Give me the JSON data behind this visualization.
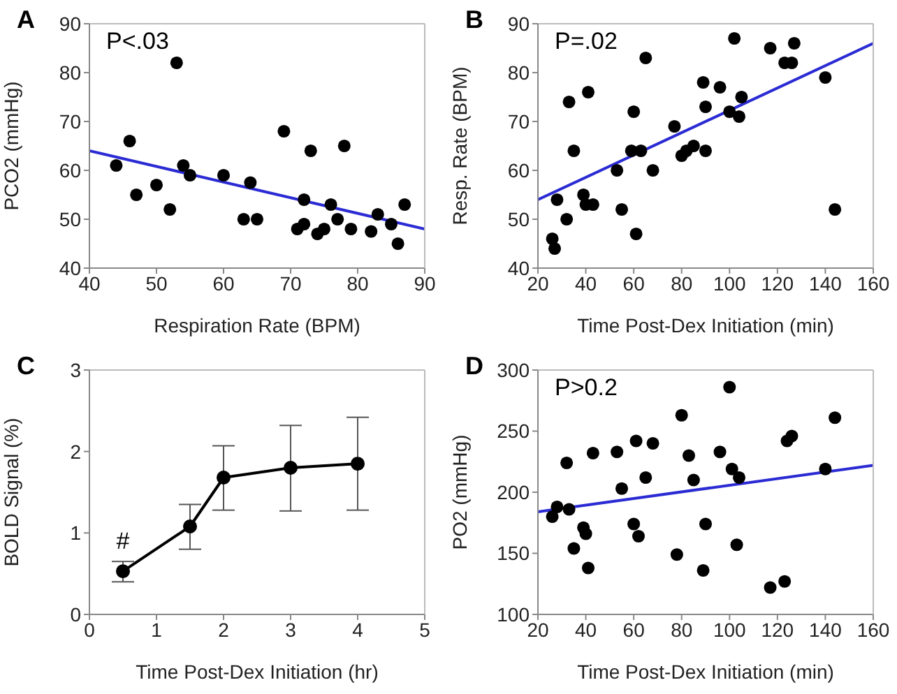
{
  "chart_data": [
    {
      "type": "scatter",
      "title": "A",
      "xlabel": "Respiration Rate (BPM)",
      "ylabel": "PCO2 (mmHg)",
      "xlim": [
        40,
        90
      ],
      "xticks": [
        40,
        50,
        60,
        70,
        80,
        90
      ],
      "ylim": [
        40,
        90
      ],
      "yticks": [
        40,
        50,
        60,
        70,
        80,
        90
      ],
      "marker": "circle",
      "annotations": [
        "P<.03"
      ],
      "series": [
        {
          "color": "#000000",
          "x": [
            44,
            46,
            47,
            50,
            52,
            53,
            54,
            55,
            60,
            63,
            64,
            65,
            69,
            71,
            72,
            72,
            73,
            74,
            75,
            76,
            77,
            78,
            79,
            82,
            83,
            85,
            86,
            87
          ],
          "values": [
            61,
            66,
            55,
            57,
            52,
            82,
            61,
            59,
            59,
            50,
            57.5,
            50,
            68,
            48,
            49,
            54,
            64,
            47,
            48,
            53,
            50,
            65,
            48,
            47.5,
            51,
            49,
            45,
            53
          ]
        },
        {
          "type": "line",
          "marker": "none",
          "color": "#2b2bd4",
          "x": [
            40,
            90
          ],
          "values": [
            64,
            48
          ]
        }
      ]
    },
    {
      "type": "scatter",
      "title": "B",
      "xlabel": "Time Post-Dex Initiation (min)",
      "ylabel": "Resp. Rate (BPM)",
      "xlim": [
        20,
        160
      ],
      "xticks": [
        20,
        40,
        60,
        80,
        100,
        120,
        140,
        160
      ],
      "ylim": [
        40,
        90
      ],
      "yticks": [
        40,
        50,
        60,
        70,
        80,
        90
      ],
      "marker": "circle",
      "annotations": [
        "P=.02"
      ],
      "series": [
        {
          "color": "#000000",
          "x": [
            26,
            27,
            28,
            32,
            33,
            35,
            39,
            40,
            41,
            43,
            53,
            55,
            60,
            59,
            61,
            63,
            65,
            68,
            77,
            80,
            82,
            85,
            89,
            90,
            90,
            96,
            100,
            102,
            104,
            105,
            117,
            123,
            126,
            127,
            140,
            144
          ],
          "values": [
            46,
            44,
            54,
            50,
            74,
            64,
            55,
            53,
            76,
            53,
            60,
            52,
            72,
            64,
            47,
            64,
            83,
            60,
            69,
            63,
            64,
            65,
            78,
            73,
            64,
            77,
            72,
            87,
            71,
            75,
            85,
            82,
            82,
            86,
            79,
            52
          ]
        },
        {
          "type": "line",
          "marker": "none",
          "color": "#2b2bd4",
          "x": [
            20,
            160
          ],
          "values": [
            54,
            86
          ]
        }
      ]
    },
    {
      "type": "line",
      "title": "C",
      "xlabel": "Time Post-Dex Initiation (hr)",
      "ylabel": "BOLD Signal (%)",
      "xlim": [
        0,
        5
      ],
      "xticks": [
        0,
        1,
        2,
        3,
        4,
        5
      ],
      "ylim": [
        0,
        3
      ],
      "yticks": [
        0,
        1,
        2,
        3
      ],
      "marker": "circle",
      "annotations": [
        {
          "text": "#",
          "x": 0.5,
          "y": 0.53
        }
      ],
      "series": [
        {
          "color": "#000000",
          "x": [
            0.5,
            1.5,
            2,
            3,
            4
          ],
          "values": [
            0.53,
            1.08,
            1.68,
            1.8,
            1.85
          ],
          "errors": [
            [
              0.4,
              0.65
            ],
            [
              0.8,
              1.35
            ],
            [
              1.28,
              2.07
            ],
            [
              1.27,
              2.32
            ],
            [
              1.28,
              2.42
            ]
          ]
        }
      ]
    },
    {
      "type": "scatter",
      "title": "D",
      "xlabel": "Time Post-Dex Initiation (min)",
      "ylabel": "PO2 (mmHg)",
      "xlim": [
        20,
        160
      ],
      "xticks": [
        20,
        40,
        60,
        80,
        100,
        120,
        140,
        160
      ],
      "ylim": [
        100,
        300
      ],
      "yticks": [
        100,
        150,
        200,
        250,
        300
      ],
      "marker": "circle",
      "annotations": [
        "P>0.2"
      ],
      "series": [
        {
          "color": "#000000",
          "x": [
            26,
            28,
            32,
            33,
            35,
            39,
            40,
            41,
            43,
            53,
            55,
            60,
            61,
            62,
            65,
            68,
            78,
            80,
            83,
            85,
            89,
            90,
            96,
            100,
            101,
            103,
            104,
            117,
            123,
            124,
            126,
            140,
            144
          ],
          "values": [
            180,
            188,
            224,
            186,
            154,
            171,
            166,
            138,
            232,
            233,
            203,
            174,
            242,
            164,
            212,
            240,
            149,
            263,
            230,
            210,
            136,
            174,
            233,
            286,
            219,
            157,
            212,
            122,
            127,
            242,
            246,
            219,
            261
          ]
        },
        {
          "type": "line",
          "marker": "none",
          "color": "#2b2bd4",
          "x": [
            20,
            160
          ],
          "values": [
            184,
            222
          ]
        }
      ]
    }
  ]
}
